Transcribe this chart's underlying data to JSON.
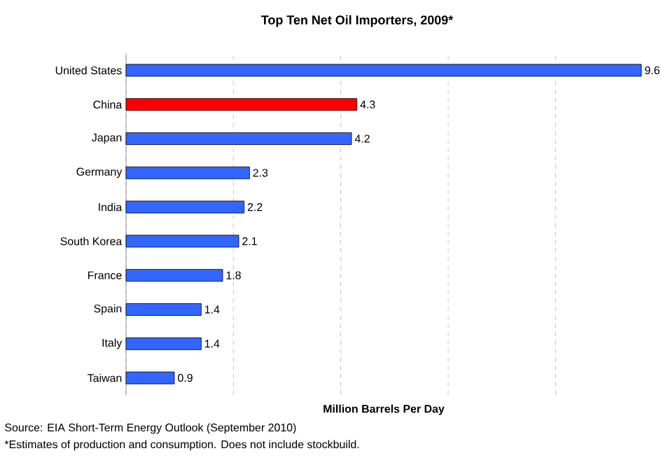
{
  "chart_data": {
    "type": "bar",
    "orientation": "horizontal",
    "title": "Top Ten Net Oil Importers, 2009*",
    "xlabel": "Million Barrels Per Day",
    "categories": [
      "United States",
      "China",
      "Japan",
      "Germany",
      "India",
      "South Korea",
      "France",
      "Spain",
      "Italy",
      "Taiwan"
    ],
    "values": [
      9.6,
      4.3,
      4.2,
      2.3,
      2.2,
      2.1,
      1.8,
      1.4,
      1.4,
      0.9
    ],
    "colors": [
      "#3366ff",
      "#ff0000",
      "#3366ff",
      "#3366ff",
      "#3366ff",
      "#3366ff",
      "#3366ff",
      "#3366ff",
      "#3366ff",
      "#3366ff"
    ],
    "grid": "x",
    "data_labels": true,
    "annotations": [
      "Source: EIA Short-Term Energy Outlook (September 2010)",
      "*Estimates of production and consumption. Does not include stockbuild."
    ]
  }
}
